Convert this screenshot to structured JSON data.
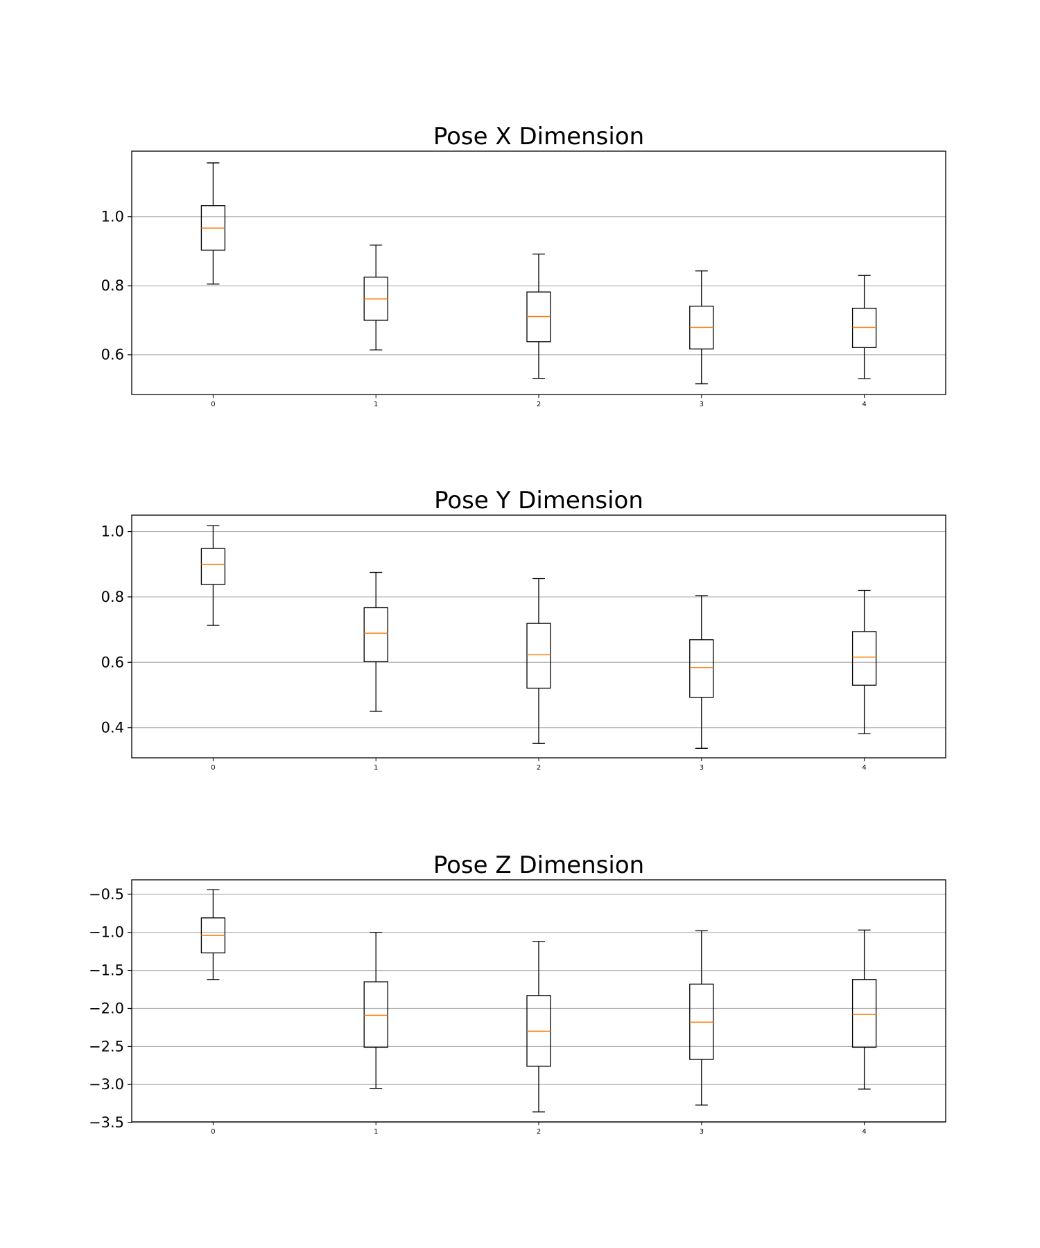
{
  "chart_data": [
    {
      "type": "box",
      "title": "Pose X Dimension",
      "categories": [
        "0",
        "1",
        "2",
        "3",
        "4"
      ],
      "yticks": [
        0.6,
        0.8,
        1.0
      ],
      "ytick_labels": [
        "0.6",
        "0.8",
        "1.0"
      ],
      "ylim": [
        0.485,
        1.19
      ],
      "grid": "horizontal",
      "boxes": [
        {
          "whisker_low": 0.805,
          "q1": 0.903,
          "median": 0.967,
          "q3": 1.032,
          "whisker_high": 1.156
        },
        {
          "whisker_low": 0.614,
          "q1": 0.7,
          "median": 0.762,
          "q3": 0.825,
          "whisker_high": 0.918
        },
        {
          "whisker_low": 0.532,
          "q1": 0.638,
          "median": 0.711,
          "q3": 0.782,
          "whisker_high": 0.892
        },
        {
          "whisker_low": 0.516,
          "q1": 0.617,
          "median": 0.679,
          "q3": 0.741,
          "whisker_high": 0.843
        },
        {
          "whisker_low": 0.531,
          "q1": 0.621,
          "median": 0.679,
          "q3": 0.735,
          "whisker_high": 0.83
        }
      ]
    },
    {
      "type": "box",
      "title": "Pose Y Dimension",
      "categories": [
        "0",
        "1",
        "2",
        "3",
        "4"
      ],
      "yticks": [
        0.4,
        0.6,
        0.8,
        1.0
      ],
      "ytick_labels": [
        "0.4",
        "0.6",
        "0.8",
        "1.0"
      ],
      "ylim": [
        0.308,
        1.05
      ],
      "grid": "horizontal",
      "boxes": [
        {
          "whisker_low": 0.713,
          "q1": 0.838,
          "median": 0.899,
          "q3": 0.948,
          "whisker_high": 1.018
        },
        {
          "whisker_low": 0.45,
          "q1": 0.602,
          "median": 0.689,
          "q3": 0.767,
          "whisker_high": 0.875
        },
        {
          "whisker_low": 0.352,
          "q1": 0.521,
          "median": 0.623,
          "q3": 0.719,
          "whisker_high": 0.856
        },
        {
          "whisker_low": 0.337,
          "q1": 0.493,
          "median": 0.584,
          "q3": 0.669,
          "whisker_high": 0.804
        },
        {
          "whisker_low": 0.382,
          "q1": 0.53,
          "median": 0.616,
          "q3": 0.694,
          "whisker_high": 0.82
        }
      ]
    },
    {
      "type": "box",
      "title": "Pose Z Dimension",
      "categories": [
        "0",
        "1",
        "2",
        "3",
        "4"
      ],
      "yticks": [
        -3.5,
        -3.0,
        -2.5,
        -2.0,
        -1.5,
        -1.0,
        -0.5
      ],
      "ytick_labels": [
        "−3.5",
        "−3.0",
        "−2.5",
        "−2.0",
        "−1.5",
        "−1.0",
        "−0.5"
      ],
      "ylim": [
        -3.49,
        -0.31
      ],
      "grid": "horizontal",
      "boxes": [
        {
          "whisker_low": -1.62,
          "q1": -1.27,
          "median": -1.04,
          "q3": -0.81,
          "whisker_high": -0.44
        },
        {
          "whisker_low": -3.05,
          "q1": -2.51,
          "median": -2.09,
          "q3": -1.65,
          "whisker_high": -1.0
        },
        {
          "whisker_low": -3.36,
          "q1": -2.76,
          "median": -2.3,
          "q3": -1.83,
          "whisker_high": -1.12
        },
        {
          "whisker_low": -3.27,
          "q1": -2.67,
          "median": -2.18,
          "q3": -1.68,
          "whisker_high": -0.98
        },
        {
          "whisker_low": -3.06,
          "q1": -2.51,
          "median": -2.08,
          "q3": -1.62,
          "whisker_high": -0.97
        }
      ]
    }
  ],
  "colors": {
    "box_edge": "#000000",
    "median": "#ff7f0e",
    "grid": "#b0b0b0",
    "axes_edge": "#000000",
    "background": "#ffffff"
  }
}
